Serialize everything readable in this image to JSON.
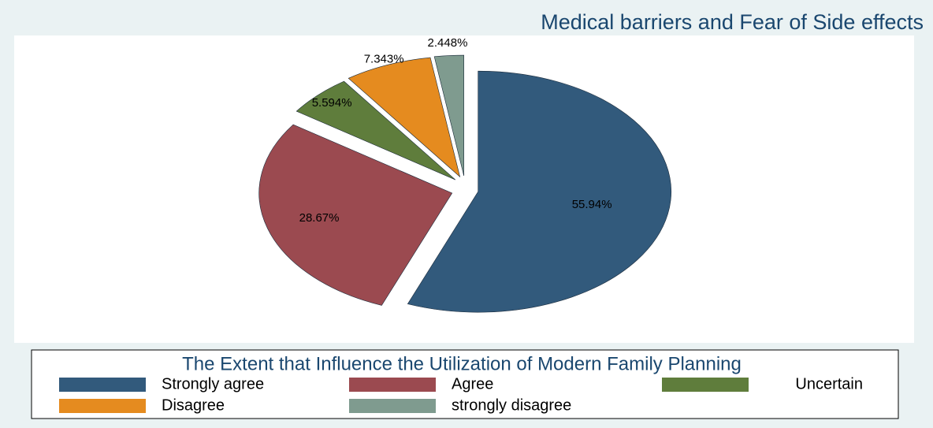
{
  "chart_data": {
    "type": "pie",
    "title": "Medical barriers and Fear of Side effects",
    "legend_title": "The Extent that Influence the Utilization of Modern Family Planning",
    "categories": [
      "Strongly agree",
      "Agree",
      "Uncertain",
      "Disagree",
      "strongly disagree"
    ],
    "values": [
      55.94,
      28.67,
      5.594,
      7.343,
      2.448
    ],
    "value_labels": [
      "55.94%",
      "28.67%",
      "5.594%",
      "7.343%",
      "2.448%"
    ],
    "colors": [
      "#325a7c",
      "#9b4a50",
      "#5f7d3c",
      "#e58b1f",
      "#7f9b8f"
    ],
    "legend": "bottom"
  }
}
